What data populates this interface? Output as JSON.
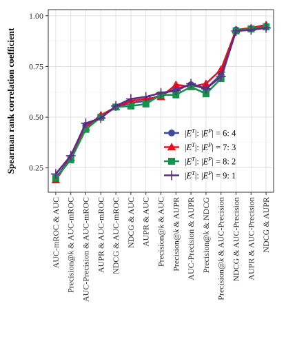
{
  "chart_data": {
    "type": "line",
    "ylabel": "Spearman rank correlation coefficient",
    "xlabel": "",
    "ylim": [
      0.13,
      1.03
    ],
    "yticks": [
      0.25,
      0.5,
      0.75,
      1.0
    ],
    "ytick_labels": [
      "0.25",
      "0.50",
      "0.75",
      "1.00"
    ],
    "grid": true,
    "legend_position": "bottom-right",
    "categories": [
      "AUC-mROC & AUC",
      "Precision@k & AUC-mROC",
      "AUC-Precision & AUC-mROC",
      "AUPR & AUC-mROC",
      "NDCG & AUC-mROC",
      "NDCG & AUC",
      "AUPR & AUC",
      "Precision@k & AUC",
      "Precision@k & AUPR",
      "AUC-Precision & AUPR",
      "Precision@k & NDCG",
      "Precision@k & AUC-Precision",
      "NDCG & AUC-Precision",
      "AUPR & AUC-Precision",
      "NDCG & AUPR"
    ],
    "series": [
      {
        "name": "|E^T|: |E^P| = 6: 4",
        "legend": {
          "pre": "|",
          "sup1": "T",
          "mid": "|: |",
          "sup2": "P",
          "post": "| = 6: 4"
        },
        "color": "#3b4a9c",
        "marker": "circle",
        "values": [
          0.2,
          0.3,
          0.46,
          0.5,
          0.55,
          0.57,
          0.58,
          0.61,
          0.64,
          0.66,
          0.64,
          0.71,
          0.93,
          0.935,
          0.945
        ]
      },
      {
        "name": "|E^T|: |E^P| = 7: 3",
        "legend": {
          "pre": "|",
          "sup1": "T",
          "mid": "|: |",
          "sup2": "P",
          "post": "| = 7: 3"
        },
        "color": "#e8101c",
        "marker": "triangle",
        "values": [
          0.19,
          0.3,
          0.45,
          0.51,
          0.55,
          0.58,
          0.59,
          0.6,
          0.66,
          0.65,
          0.665,
          0.735,
          0.93,
          0.94,
          0.955
        ]
      },
      {
        "name": "|E^T|: |E^P| = 8: 2",
        "legend": {
          "pre": "|",
          "sup1": "T",
          "mid": "|: |",
          "sup2": "P",
          "post": "| = 8: 2"
        },
        "color": "#17924a",
        "marker": "square",
        "values": [
          0.2,
          0.29,
          0.44,
          0.5,
          0.55,
          0.555,
          0.565,
          0.61,
          0.61,
          0.65,
          0.615,
          0.69,
          0.925,
          0.935,
          0.945
        ]
      },
      {
        "name": "|E^T|: |E^P| = 9: 1",
        "legend": {
          "pre": "|",
          "sup1": "T",
          "mid": "|: |",
          "sup2": "P",
          "post": "| = 9: 1"
        },
        "color": "#5e2a86",
        "marker": "cross",
        "values": [
          0.22,
          0.31,
          0.47,
          0.495,
          0.555,
          0.59,
          0.6,
          0.62,
          0.63,
          0.665,
          0.64,
          0.7,
          0.925,
          0.93,
          0.94
        ]
      }
    ]
  }
}
